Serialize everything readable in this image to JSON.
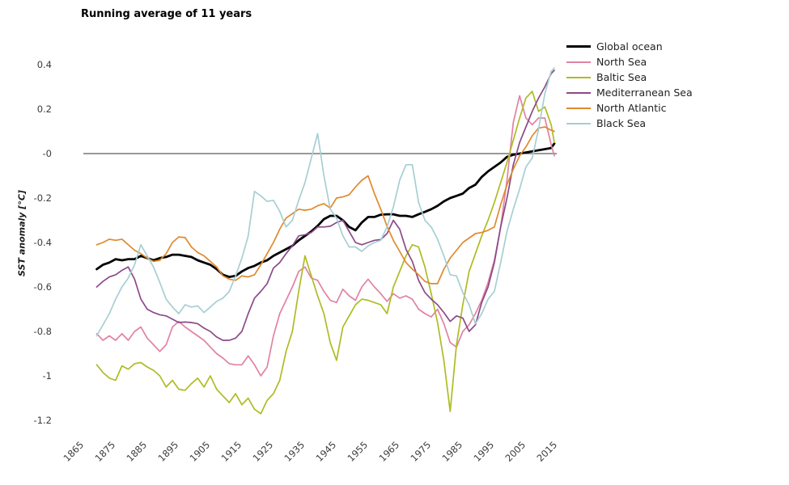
{
  "title": "Running average of 11 years",
  "chart_data": {
    "type": "line",
    "title": "Running average of 11 years",
    "xlabel": "",
    "ylabel": "SST anomaly [°C]",
    "xlim": [
      1865,
      2015
    ],
    "ylim": [
      -1.2,
      0.4
    ],
    "grid": false,
    "zero_line": true,
    "legend_position": "top-right",
    "x_tick_labels": [
      "1865",
      "1875",
      "1885",
      "1895",
      "1905",
      "1915",
      "1925",
      "1935",
      "1945",
      "1955",
      "1965",
      "1975",
      "1985",
      "1995",
      "2005",
      "2015"
    ],
    "y_tick_labels": [
      "0.4",
      "0.2",
      "-0",
      "-0.2",
      "-0.4",
      "-0.6",
      "-0.8",
      "-1",
      "-1.2"
    ],
    "y_tick_values": [
      0.4,
      0.2,
      0,
      -0.2,
      -0.4,
      -0.6,
      -0.8,
      -1,
      -1.2
    ],
    "years": [
      1870,
      1872,
      1874,
      1876,
      1878,
      1880,
      1882,
      1884,
      1886,
      1888,
      1890,
      1892,
      1894,
      1896,
      1898,
      1900,
      1902,
      1904,
      1906,
      1908,
      1910,
      1912,
      1914,
      1916,
      1918,
      1920,
      1922,
      1924,
      1926,
      1928,
      1930,
      1932,
      1934,
      1936,
      1938,
      1940,
      1942,
      1944,
      1946,
      1948,
      1950,
      1952,
      1954,
      1956,
      1958,
      1960,
      1962,
      1964,
      1966,
      1968,
      1970,
      1972,
      1974,
      1976,
      1978,
      1980,
      1982,
      1984,
      1986,
      1988,
      1990,
      1992,
      1994,
      1996,
      1998,
      2000,
      2002,
      2004,
      2006,
      2008,
      2010,
      2012,
      2014,
      2015
    ],
    "series": [
      {
        "name": "Global ocean",
        "color": "#000000",
        "width": 2.8,
        "values": [
          -0.52,
          -0.5,
          -0.49,
          -0.475,
          -0.48,
          -0.475,
          -0.475,
          -0.46,
          -0.47,
          -0.48,
          -0.47,
          -0.465,
          -0.455,
          -0.455,
          -0.46,
          -0.465,
          -0.48,
          -0.49,
          -0.5,
          -0.52,
          -0.545,
          -0.555,
          -0.55,
          -0.53,
          -0.515,
          -0.505,
          -0.49,
          -0.48,
          -0.46,
          -0.445,
          -0.43,
          -0.415,
          -0.39,
          -0.37,
          -0.35,
          -0.325,
          -0.295,
          -0.28,
          -0.28,
          -0.3,
          -0.33,
          -0.345,
          -0.31,
          -0.285,
          -0.285,
          -0.275,
          -0.273,
          -0.273,
          -0.28,
          -0.28,
          -0.285,
          -0.273,
          -0.262,
          -0.25,
          -0.235,
          -0.215,
          -0.2,
          -0.19,
          -0.18,
          -0.155,
          -0.14,
          -0.105,
          -0.08,
          -0.06,
          -0.04,
          -0.015,
          -0.005,
          0.0,
          0.005,
          0.01,
          0.015,
          0.02,
          0.025,
          0.045
        ]
      },
      {
        "name": "North Sea",
        "color": "#e182a3",
        "width": 1.7,
        "values": [
          -0.81,
          -0.84,
          -0.82,
          -0.84,
          -0.81,
          -0.84,
          -0.8,
          -0.78,
          -0.83,
          -0.86,
          -0.89,
          -0.86,
          -0.78,
          -0.755,
          -0.78,
          -0.8,
          -0.82,
          -0.84,
          -0.87,
          -0.9,
          -0.92,
          -0.945,
          -0.95,
          -0.95,
          -0.91,
          -0.95,
          -1.0,
          -0.96,
          -0.82,
          -0.72,
          -0.66,
          -0.6,
          -0.53,
          -0.51,
          -0.56,
          -0.57,
          -0.62,
          -0.66,
          -0.67,
          -0.61,
          -0.64,
          -0.66,
          -0.6,
          -0.565,
          -0.6,
          -0.63,
          -0.665,
          -0.63,
          -0.65,
          -0.64,
          -0.655,
          -0.7,
          -0.72,
          -0.735,
          -0.7,
          -0.765,
          -0.85,
          -0.87,
          -0.8,
          -0.77,
          -0.72,
          -0.66,
          -0.58,
          -0.48,
          -0.33,
          -0.12,
          0.14,
          0.26,
          0.16,
          0.13,
          0.16,
          0.16,
          0.04,
          -0.01
        ]
      },
      {
        "name": "Baltic Sea",
        "color": "#aebc23",
        "width": 1.7,
        "values": [
          -0.95,
          -0.985,
          -1.01,
          -1.02,
          -0.955,
          -0.97,
          -0.945,
          -0.94,
          -0.96,
          -0.975,
          -1.0,
          -1.05,
          -1.02,
          -1.06,
          -1.065,
          -1.035,
          -1.01,
          -1.05,
          -1.0,
          -1.06,
          -1.09,
          -1.12,
          -1.08,
          -1.13,
          -1.1,
          -1.15,
          -1.17,
          -1.11,
          -1.08,
          -1.02,
          -0.89,
          -0.8,
          -0.62,
          -0.46,
          -0.55,
          -0.64,
          -0.72,
          -0.85,
          -0.93,
          -0.78,
          -0.73,
          -0.68,
          -0.655,
          -0.66,
          -0.67,
          -0.68,
          -0.72,
          -0.6,
          -0.53,
          -0.46,
          -0.41,
          -0.42,
          -0.51,
          -0.63,
          -0.76,
          -0.93,
          -1.16,
          -0.86,
          -0.68,
          -0.53,
          -0.45,
          -0.37,
          -0.3,
          -0.22,
          -0.13,
          -0.04,
          0.06,
          0.16,
          0.25,
          0.28,
          0.19,
          0.21,
          0.13,
          0.05
        ]
      },
      {
        "name": "Mediterranean Sea",
        "color": "#8b4a89",
        "width": 1.7,
        "values": [
          -0.6,
          -0.575,
          -0.555,
          -0.545,
          -0.525,
          -0.51,
          -0.565,
          -0.655,
          -0.7,
          -0.715,
          -0.725,
          -0.73,
          -0.745,
          -0.76,
          -0.758,
          -0.76,
          -0.765,
          -0.785,
          -0.8,
          -0.825,
          -0.84,
          -0.84,
          -0.83,
          -0.8,
          -0.72,
          -0.65,
          -0.62,
          -0.585,
          -0.515,
          -0.49,
          -0.45,
          -0.415,
          -0.37,
          -0.365,
          -0.355,
          -0.33,
          -0.33,
          -0.327,
          -0.31,
          -0.3,
          -0.35,
          -0.4,
          -0.41,
          -0.4,
          -0.39,
          -0.387,
          -0.36,
          -0.3,
          -0.34,
          -0.43,
          -0.485,
          -0.57,
          -0.625,
          -0.655,
          -0.68,
          -0.715,
          -0.755,
          -0.73,
          -0.74,
          -0.8,
          -0.77,
          -0.67,
          -0.6,
          -0.49,
          -0.33,
          -0.2,
          -0.05,
          0.05,
          0.12,
          0.19,
          0.25,
          0.3,
          0.36,
          0.375
        ]
      },
      {
        "name": "North Atlantic",
        "color": "#df8a2d",
        "width": 1.7,
        "values": [
          -0.41,
          -0.4,
          -0.385,
          -0.39,
          -0.385,
          -0.41,
          -0.435,
          -0.45,
          -0.47,
          -0.485,
          -0.48,
          -0.45,
          -0.4,
          -0.375,
          -0.378,
          -0.42,
          -0.445,
          -0.46,
          -0.485,
          -0.51,
          -0.55,
          -0.565,
          -0.57,
          -0.55,
          -0.555,
          -0.545,
          -0.5,
          -0.45,
          -0.4,
          -0.34,
          -0.29,
          -0.27,
          -0.25,
          -0.255,
          -0.25,
          -0.235,
          -0.225,
          -0.245,
          -0.2,
          -0.195,
          -0.185,
          -0.15,
          -0.12,
          -0.1,
          -0.18,
          -0.25,
          -0.327,
          -0.39,
          -0.44,
          -0.49,
          -0.52,
          -0.545,
          -0.575,
          -0.585,
          -0.585,
          -0.52,
          -0.47,
          -0.435,
          -0.4,
          -0.38,
          -0.36,
          -0.355,
          -0.345,
          -0.33,
          -0.23,
          -0.14,
          -0.07,
          -0.01,
          0.03,
          0.08,
          0.115,
          0.12,
          0.105,
          0.1
        ]
      },
      {
        "name": "Black Sea",
        "color": "#a6cfd2",
        "width": 1.7,
        "values": [
          -0.82,
          -0.77,
          -0.72,
          -0.655,
          -0.6,
          -0.56,
          -0.5,
          -0.41,
          -0.46,
          -0.51,
          -0.58,
          -0.655,
          -0.69,
          -0.72,
          -0.68,
          -0.69,
          -0.685,
          -0.715,
          -0.69,
          -0.665,
          -0.65,
          -0.62,
          -0.55,
          -0.47,
          -0.37,
          -0.17,
          -0.19,
          -0.215,
          -0.21,
          -0.26,
          -0.33,
          -0.3,
          -0.21,
          -0.13,
          -0.02,
          0.09,
          -0.1,
          -0.25,
          -0.29,
          -0.37,
          -0.42,
          -0.42,
          -0.44,
          -0.415,
          -0.4,
          -0.39,
          -0.33,
          -0.24,
          -0.12,
          -0.05,
          -0.05,
          -0.22,
          -0.3,
          -0.33,
          -0.385,
          -0.46,
          -0.545,
          -0.55,
          -0.625,
          -0.68,
          -0.765,
          -0.72,
          -0.655,
          -0.62,
          -0.49,
          -0.35,
          -0.25,
          -0.16,
          -0.06,
          -0.02,
          0.11,
          0.27,
          0.37,
          0.385
        ]
      }
    ],
    "colors": {
      "zero_line": "#333333",
      "tick_text": "#3c3c3c",
      "background": "#ffffff"
    }
  }
}
